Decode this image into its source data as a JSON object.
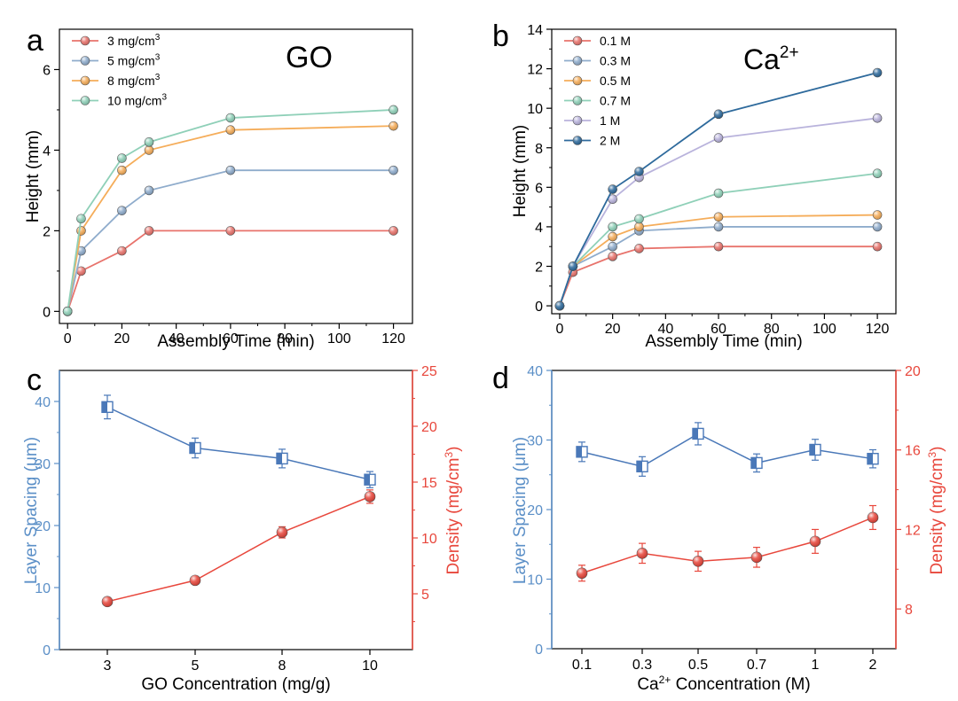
{
  "chart_data": [
    {
      "panel": "a",
      "type": "line",
      "title": "GO",
      "xlabel": "Assembly Time (min)",
      "ylabel": "Height (mm)",
      "x": [
        0,
        5,
        20,
        30,
        60,
        120
      ],
      "xlim": [
        -3,
        127
      ],
      "ylim": [
        -0.3,
        7
      ],
      "xticks": [
        0,
        20,
        40,
        60,
        80,
        100,
        120
      ],
      "yticks": [
        0,
        2,
        4,
        6
      ],
      "legend": "top-left",
      "series": [
        {
          "name": "3 mg/cm",
          "sup": "3",
          "color": "#e8736c",
          "values": [
            0,
            1.0,
            1.5,
            2.0,
            2.0,
            2.0
          ]
        },
        {
          "name": "5 mg/cm",
          "sup": "3",
          "color": "#8faccc",
          "values": [
            0,
            1.5,
            2.5,
            3.0,
            3.5,
            3.5
          ]
        },
        {
          "name": "8 mg/cm",
          "sup": "3",
          "color": "#f5ad5a",
          "values": [
            0,
            2.0,
            3.5,
            4.0,
            4.5,
            4.6
          ]
        },
        {
          "name": "10 mg/cm",
          "sup": "3",
          "color": "#8fd0b8",
          "values": [
            0,
            2.3,
            3.8,
            4.2,
            4.8,
            5.0
          ]
        }
      ]
    },
    {
      "panel": "b",
      "type": "line",
      "title": "Ca",
      "title_sup": "2+",
      "xlabel": "Assembly Time (min)",
      "ylabel": "Height (mm)",
      "x": [
        0,
        5,
        20,
        30,
        60,
        120
      ],
      "xlim": [
        -3,
        127
      ],
      "ylim": [
        -0.4,
        14
      ],
      "xticks": [
        0,
        20,
        40,
        60,
        80,
        100,
        120
      ],
      "yticks": [
        0,
        2,
        4,
        6,
        8,
        10,
        12,
        14
      ],
      "legend": "top-left",
      "series": [
        {
          "name": "0.1 M",
          "color": "#e8736c",
          "values": [
            0,
            1.7,
            2.5,
            2.9,
            3.0,
            3.0
          ]
        },
        {
          "name": "0.3 M",
          "color": "#8faccc",
          "values": [
            0,
            2.0,
            3.0,
            3.8,
            4.0,
            4.0
          ]
        },
        {
          "name": "0.5 M",
          "color": "#f5ad5a",
          "values": [
            0,
            2.0,
            3.5,
            4.0,
            4.5,
            4.6
          ]
        },
        {
          "name": "0.7 M",
          "color": "#8fd0b8",
          "values": [
            0,
            2.0,
            4.0,
            4.4,
            5.7,
            6.7
          ]
        },
        {
          "name": "1 M",
          "color": "#b9b3dc",
          "values": [
            0,
            2.0,
            5.4,
            6.5,
            8.5,
            9.5
          ]
        },
        {
          "name": "2 M",
          "color": "#2e6a9c",
          "values": [
            0,
            2.0,
            5.9,
            6.8,
            9.7,
            11.8
          ]
        }
      ]
    },
    {
      "panel": "c",
      "type": "line",
      "xlabel": "GO Concentration (mg/g)",
      "ylabel_left": "Layer Spacing (μm)",
      "ylabel_right": "Density (mg/cm",
      "ylabel_right_sup": "3",
      "categories": [
        "3",
        "5",
        "8",
        "10"
      ],
      "ylim_left": [
        0,
        45
      ],
      "ylim_right": [
        0,
        25
      ],
      "yticks_left": [
        0,
        10,
        20,
        30,
        40
      ],
      "yticks_right": [
        5,
        10,
        15,
        20,
        25
      ],
      "left_color": "#5b8fc7",
      "right_color": "#e8473c",
      "series": [
        {
          "name": "Layer Spacing",
          "axis": "left",
          "marker": "square",
          "color": "#4a78b8",
          "values": [
            39.1,
            32.5,
            30.8,
            27.4
          ],
          "errors": [
            1.9,
            1.6,
            1.5,
            1.3
          ]
        },
        {
          "name": "Density",
          "axis": "right",
          "marker": "circle",
          "color": "#e8473c",
          "values": [
            4.3,
            6.2,
            10.5,
            13.7
          ],
          "errors": [
            0.2,
            0.2,
            0.5,
            0.6
          ]
        }
      ]
    },
    {
      "panel": "d",
      "type": "line",
      "xlabel": "Ca",
      "xlabel_sup": "2+",
      "xlabel_tail": " Concentration (M)",
      "ylabel_left": "Layer Spacing (μm)",
      "ylabel_right": "Density (mg/cm",
      "ylabel_right_sup": "3",
      "categories": [
        "0.1",
        "0.3",
        "0.5",
        "0.7",
        "1",
        "2"
      ],
      "ylim_left": [
        0,
        40
      ],
      "ylim_right": [
        6,
        20
      ],
      "yticks_left": [
        0,
        10,
        20,
        30,
        40
      ],
      "yticks_right": [
        8,
        12,
        16,
        20
      ],
      "left_color": "#5b8fc7",
      "right_color": "#e8473c",
      "series": [
        {
          "name": "Layer Spacing",
          "axis": "left",
          "marker": "square",
          "color": "#4a78b8",
          "values": [
            28.3,
            26.2,
            30.9,
            26.7,
            28.6,
            27.3
          ],
          "errors": [
            1.4,
            1.4,
            1.6,
            1.3,
            1.5,
            1.3
          ]
        },
        {
          "name": "Density",
          "axis": "right",
          "marker": "circle",
          "color": "#e8473c",
          "values": [
            9.8,
            10.8,
            10.4,
            10.6,
            11.4,
            12.6
          ],
          "errors": [
            0.4,
            0.5,
            0.5,
            0.5,
            0.6,
            0.6
          ]
        }
      ]
    }
  ]
}
